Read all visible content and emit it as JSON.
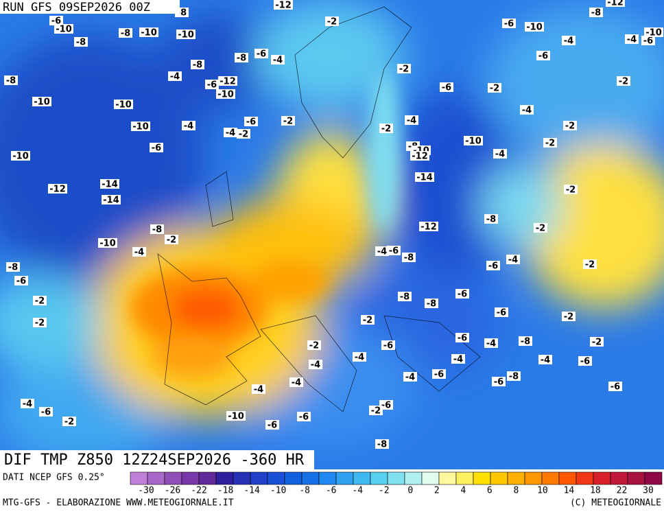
{
  "run_label": "RUN GFS 09SEP2026 00Z",
  "title": "DIF TMP Z850 12Z24SEP2026 -360 HR",
  "source": "DATI NCEP GFS 0.25°",
  "credit_left": "MTG-GFS - ELABORAZIONE WWW.METEOGIORNALE.IT",
  "credit_right": "(C) METEOGIORNALE",
  "legend": {
    "colors": [
      "#c080d8",
      "#a868c8",
      "#9050b8",
      "#7838a8",
      "#602898",
      "#3020a0",
      "#2830b8",
      "#2040c8",
      "#1850d8",
      "#1060e0",
      "#1870e8",
      "#2088f0",
      "#30a0f0",
      "#40b8f0",
      "#58d0f0",
      "#80e0f0",
      "#b0f0f0",
      "#e0fff0",
      "#fff8a0",
      "#fff060",
      "#ffe000",
      "#ffc800",
      "#ffb000",
      "#ff9800",
      "#ff7800",
      "#ff5800",
      "#f03818",
      "#d82028",
      "#c01838",
      "#a81040",
      "#900848"
    ],
    "labels": [
      -30,
      -26,
      -22,
      -18,
      -14,
      -10,
      -8,
      -6,
      -4,
      -2,
      0,
      2,
      4,
      6,
      8,
      10,
      14,
      18,
      22,
      30
    ]
  },
  "contour_labels": [
    -8,
    -12,
    -6,
    -10,
    -8,
    -10,
    -10,
    -2,
    -6,
    -10,
    -8,
    -12,
    -8,
    -8,
    -6,
    -4,
    -4,
    -4,
    -6,
    -10,
    -8,
    -6,
    -2,
    -8,
    -4,
    -6,
    -12,
    -10,
    -6,
    -2,
    -2,
    -10,
    -10,
    -4,
    -6,
    -2,
    -4,
    -10,
    -4,
    -2,
    -4,
    -2,
    -2,
    -8,
    -10,
    -12,
    -10,
    -2,
    -6,
    -10,
    -4,
    -14,
    -14,
    -12,
    -14,
    -2,
    -8,
    -12,
    -2,
    -8,
    -2,
    -10,
    -4,
    -6,
    -8,
    -4,
    -8,
    -6,
    -4,
    -2,
    -6,
    -8,
    -8,
    -6,
    -2,
    -2,
    -6,
    -2,
    -2,
    -6,
    -4,
    -8,
    -2,
    -2,
    -6,
    -4,
    -4,
    -4,
    -6,
    -4,
    -4,
    -6,
    -6,
    -8,
    -4,
    -4,
    -6,
    -4,
    -6,
    -6,
    -2,
    -2,
    -10,
    -6,
    -6,
    -8
  ]
}
